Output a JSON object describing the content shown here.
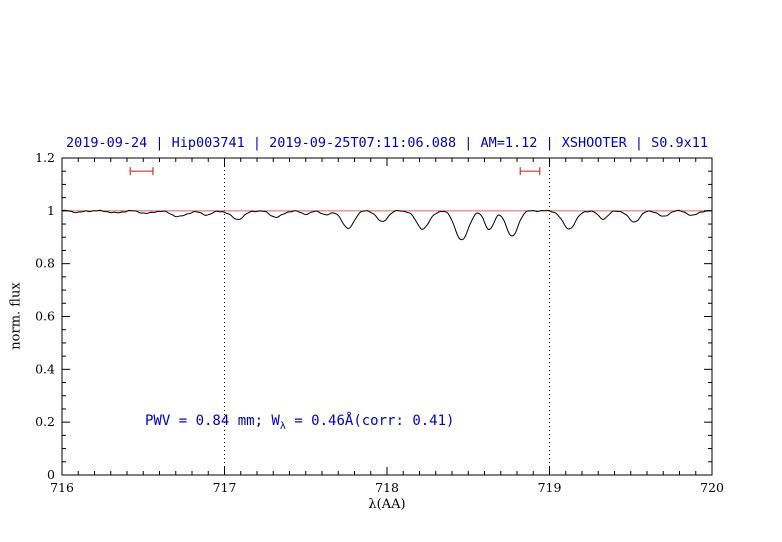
{
  "colors": {
    "title": "#0000cd",
    "annotation": "#0000cd",
    "axis": "#000000",
    "spectrum": "#000000",
    "continuum": "#e06060",
    "marker": "#cc3333",
    "vline": "#000000"
  },
  "chart_data": {
    "type": "line",
    "title": "2019-09-24 | Hip003741 | 2019-09-25T07:11:06.088 | AM=1.12 | XSHOOTER | S0.9x11",
    "xlabel": "λ(AA)",
    "ylabel": "norm. flux",
    "xlim": [
      716,
      720
    ],
    "ylim": [
      0,
      1.2
    ],
    "x_ticks": [
      716,
      717,
      718,
      719,
      720
    ],
    "x_tick_labels": [
      "716",
      "717",
      "718",
      "719",
      "720"
    ],
    "x_minor_step": 0.1,
    "y_ticks": [
      0,
      0.2,
      0.4,
      0.6,
      0.8,
      1,
      1.2
    ],
    "y_tick_labels": [
      "0",
      "0.2",
      "0.4",
      "0.6",
      "0.8",
      "1",
      "1.2"
    ],
    "y_minor_step": 0.05,
    "grid": "dotted vertical lines only",
    "vlines": [
      717,
      719
    ],
    "continuum_level": 1.0,
    "range_markers": [
      {
        "x_start": 716.42,
        "x_end": 716.56,
        "y": 1.15
      },
      {
        "x_start": 718.82,
        "x_end": 718.94,
        "y": 1.15
      }
    ],
    "annotation": {
      "prefix": "PWV = 0.84 mm; W",
      "sub": "λ",
      "suffix": " = 0.46Å(corr: 0.41)",
      "full": "PWV = 0.84 mm; W_λ = 0.46Å(corr: 0.41)"
    },
    "sample_step": 0.008,
    "absorption_lines": [
      {
        "center": 716.1,
        "depth": 0.006,
        "sigma": 0.03
      },
      {
        "center": 716.33,
        "depth": 0.008,
        "sigma": 0.035
      },
      {
        "center": 716.52,
        "depth": 0.01,
        "sigma": 0.035
      },
      {
        "center": 716.72,
        "depth": 0.022,
        "sigma": 0.045
      },
      {
        "center": 716.89,
        "depth": 0.015,
        "sigma": 0.035
      },
      {
        "center": 717.08,
        "depth": 0.032,
        "sigma": 0.04
      },
      {
        "center": 717.32,
        "depth": 0.024,
        "sigma": 0.038
      },
      {
        "center": 717.5,
        "depth": 0.012,
        "sigma": 0.03
      },
      {
        "center": 717.63,
        "depth": 0.015,
        "sigma": 0.03
      },
      {
        "center": 717.76,
        "depth": 0.068,
        "sigma": 0.035
      },
      {
        "center": 717.97,
        "depth": 0.042,
        "sigma": 0.032
      },
      {
        "center": 718.22,
        "depth": 0.068,
        "sigma": 0.04
      },
      {
        "center": 718.46,
        "depth": 0.112,
        "sigma": 0.04
      },
      {
        "center": 718.63,
        "depth": 0.07,
        "sigma": 0.03
      },
      {
        "center": 718.77,
        "depth": 0.098,
        "sigma": 0.035
      },
      {
        "center": 719.12,
        "depth": 0.068,
        "sigma": 0.04
      },
      {
        "center": 719.33,
        "depth": 0.03,
        "sigma": 0.03
      },
      {
        "center": 719.52,
        "depth": 0.042,
        "sigma": 0.035
      },
      {
        "center": 719.7,
        "depth": 0.022,
        "sigma": 0.03
      },
      {
        "center": 719.88,
        "depth": 0.018,
        "sigma": 0.03
      }
    ]
  }
}
